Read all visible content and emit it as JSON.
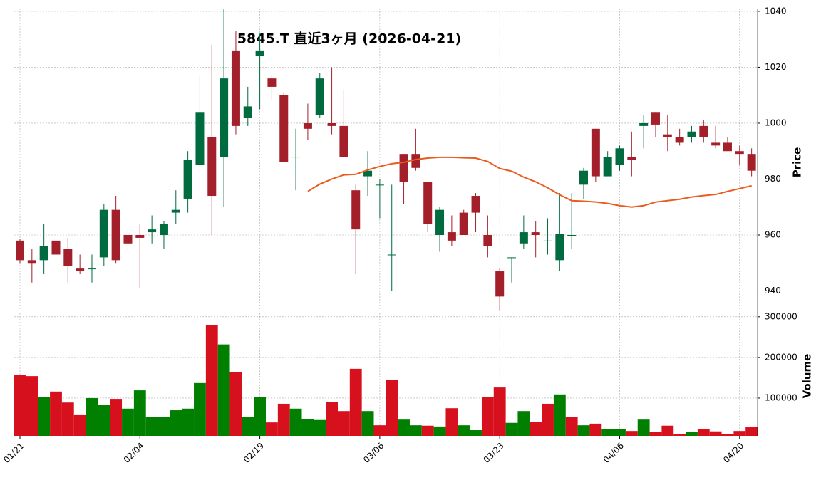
{
  "chart_data": {
    "type": "candlestick",
    "title": "5845.T 直近3ヶ月 (2026-04-21)",
    "categories": [
      "01/21",
      null,
      null,
      null,
      null,
      null,
      null,
      null,
      null,
      null,
      "02/04",
      null,
      null,
      null,
      null,
      null,
      null,
      null,
      null,
      null,
      "02/19",
      null,
      null,
      null,
      null,
      null,
      null,
      null,
      null,
      null,
      "03/06",
      null,
      null,
      null,
      null,
      null,
      null,
      null,
      null,
      null,
      "03/23",
      null,
      null,
      null,
      null,
      null,
      null,
      null,
      null,
      null,
      "04/06",
      null,
      null,
      null,
      null,
      null,
      null,
      null,
      null,
      null,
      "04/20",
      null
    ],
    "open": [
      958,
      951,
      951,
      958,
      955,
      948,
      948,
      952,
      969,
      960,
      960,
      961,
      960,
      968,
      973,
      985,
      995,
      988,
      1026,
      1002,
      1024,
      1016,
      1010,
      988,
      1000,
      1003,
      1000,
      999,
      976,
      981,
      978,
      953,
      989,
      989,
      979,
      960,
      961,
      968,
      974,
      960,
      947,
      952,
      957,
      961,
      958,
      951,
      960,
      978,
      998,
      981,
      985,
      988,
      999,
      1004,
      996,
      995,
      995,
      999,
      993,
      993,
      990,
      989
    ],
    "high": [
      958.5,
      955,
      964,
      958,
      959,
      953,
      953,
      971,
      974,
      962,
      964,
      967,
      965,
      976,
      990,
      1017,
      1028,
      1041,
      1033,
      1013,
      1032,
      1017,
      1011,
      998,
      1007,
      1018,
      1020,
      1012,
      978,
      990,
      980,
      978,
      989,
      998,
      979,
      970,
      967,
      969,
      975,
      967,
      948,
      952,
      967,
      965,
      966,
      975,
      975,
      984,
      998,
      990,
      992,
      997,
      1003,
      1004,
      1003,
      998,
      999,
      1001,
      999,
      995,
      992,
      991
    ],
    "low": [
      950,
      943,
      946,
      946,
      943,
      946,
      943,
      949,
      950,
      954,
      941,
      957,
      955,
      964,
      968,
      984,
      960,
      970,
      996,
      999,
      1005,
      1008,
      986,
      976,
      994,
      1002,
      996,
      988,
      946,
      974,
      966,
      940,
      971,
      983,
      961,
      954,
      956,
      960,
      961,
      952,
      933,
      943,
      955,
      952,
      953,
      947,
      955,
      973,
      979,
      981,
      983,
      981,
      991,
      995,
      990,
      992,
      993,
      993,
      991,
      990,
      985,
      981
    ],
    "close": [
      951,
      950,
      956,
      953,
      949,
      947,
      948,
      969,
      951,
      957,
      959,
      962,
      964,
      969,
      987,
      1004,
      974,
      1016,
      999,
      1006,
      1026,
      1013,
      986,
      988,
      998,
      1016,
      999,
      988,
      962,
      983,
      978,
      953,
      979,
      984,
      964,
      969,
      958,
      960,
      968,
      956,
      938,
      952,
      961,
      960,
      958,
      960.5,
      960,
      983,
      981,
      988,
      991,
      987,
      1000,
      999.5,
      995,
      993,
      997,
      995,
      992,
      990,
      989,
      983
    ],
    "ma": {
      "values": [
        null,
        null,
        null,
        null,
        null,
        null,
        null,
        null,
        null,
        null,
        null,
        null,
        null,
        null,
        null,
        null,
        null,
        null,
        null,
        null,
        null,
        null,
        null,
        null,
        975.6,
        978.2,
        980,
        981.5,
        981.7,
        983.3,
        984.5,
        985.5,
        986,
        987,
        987.5,
        987.8,
        987.8,
        987.6,
        987.5,
        986.3,
        983.8,
        982.8,
        980.7,
        979,
        976.9,
        974.4,
        972.3,
        972.1,
        971.8,
        971.3,
        970.5,
        970,
        970.5,
        971.8,
        972.3,
        972.8,
        973.6,
        974.1,
        974.5,
        975.6,
        976.6,
        977.6
      ],
      "color": "#ea5b1e"
    },
    "ylabel": "Price",
    "ylim": [
      933,
      1041
    ],
    "yticks": [
      940,
      960,
      980,
      1000,
      1020,
      1040
    ],
    "up_color": "#006b3f",
    "down_color": "#a31f2a",
    "volume": {
      "label": "Volume",
      "values": [
        156000,
        154000,
        102000,
        116000,
        89000,
        58000,
        100000,
        84000,
        98000,
        74000,
        119000,
        54000,
        54000,
        70000,
        74000,
        137000,
        279000,
        232000,
        163000,
        53000,
        102000,
        40000,
        86000,
        74000,
        49000,
        46000,
        91000,
        68000,
        172000,
        68000,
        33000,
        144000,
        47000,
        33000,
        32000,
        30000,
        75000,
        33000,
        21000,
        102000,
        126000,
        39000,
        68000,
        42000,
        86000,
        109000,
        53000,
        33000,
        37000,
        23000,
        23000,
        19000,
        47000,
        16000,
        32000,
        12000,
        16000,
        23000,
        18000,
        12000,
        19000,
        28000
      ],
      "ylim": [
        7000,
        326000
      ],
      "yticks": [
        100000,
        200000,
        300000
      ],
      "up_color": "#007f00",
      "down_color": "#d7101e"
    },
    "grid": true
  }
}
